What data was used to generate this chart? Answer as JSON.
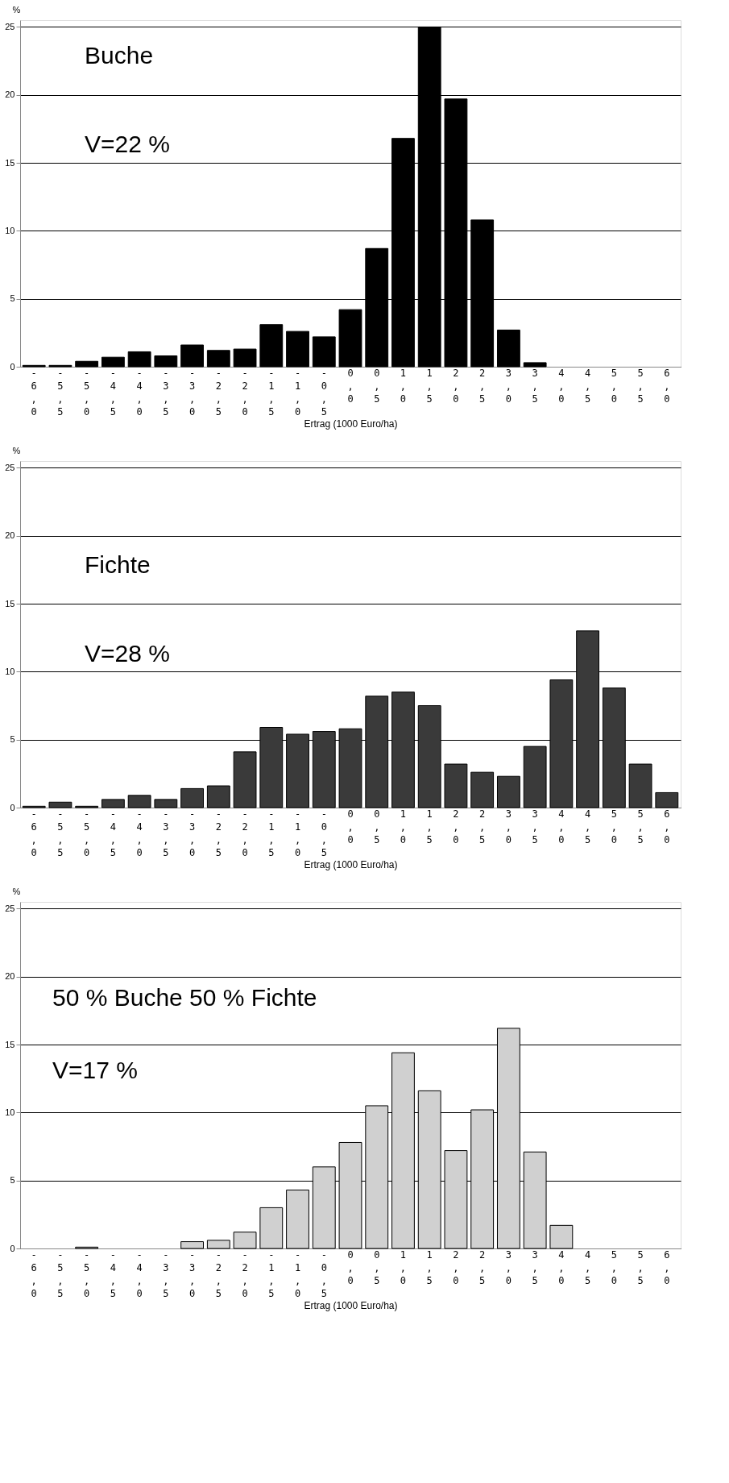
{
  "chart_data": [
    {
      "type": "bar",
      "title": null,
      "xlabel": "Ertrag (1000 Euro/ha)",
      "ylabel": "%",
      "categories": [
        "-6,0",
        "-5,5",
        "-5,0",
        "-4,5",
        "-4,0",
        "-3,5",
        "-3,0",
        "-2,5",
        "-2,0",
        "-1,5",
        "-1,0",
        "-0,5",
        "0,0",
        "0,5",
        "1,0",
        "1,5",
        "2,0",
        "2,5",
        "3,0",
        "3,5",
        "4,0",
        "4,5",
        "5,0",
        "5,5",
        "6,0"
      ],
      "values": [
        0.1,
        0.1,
        0.4,
        0.7,
        1.1,
        0.8,
        1.6,
        1.2,
        1.3,
        3.1,
        2.6,
        2.2,
        4.2,
        8.7,
        16.8,
        25,
        19.7,
        10.8,
        2.7,
        0.3,
        0,
        0,
        0,
        0,
        0
      ],
      "color": "#000000",
      "ylim": [
        0,
        25.5
      ],
      "yticks": [
        0,
        5,
        10,
        15,
        20,
        25
      ],
      "grid": "y",
      "annotations": [
        "Buche",
        "V=22 %"
      ]
    },
    {
      "type": "bar",
      "xlabel": "Ertrag (1000 Euro/ha)",
      "ylabel": "%",
      "categories": [
        "-6,0",
        "-5,5",
        "-5,0",
        "-4,5",
        "-4,0",
        "-3,5",
        "-3,0",
        "-2,5",
        "-2,0",
        "-1,5",
        "-1,0",
        "-0,5",
        "0,0",
        "0,5",
        "1,0",
        "1,5",
        "2,0",
        "2,5",
        "3,0",
        "3,5",
        "4,0",
        "4,5",
        "5,0",
        "5,5",
        "6,0"
      ],
      "values": [
        0.1,
        0.4,
        0.1,
        0.6,
        0.9,
        0.6,
        1.4,
        1.6,
        4.1,
        5.9,
        5.4,
        5.6,
        5.8,
        8.2,
        8.5,
        7.5,
        3.2,
        2.6,
        2.3,
        4.5,
        9.4,
        13.0,
        8.8,
        3.2,
        1.1
      ],
      "color": "#3a3a3a",
      "ylim": [
        0,
        25.5
      ],
      "yticks": [
        0,
        5,
        10,
        15,
        20,
        25
      ],
      "grid": "y",
      "annotations": [
        "Fichte",
        "V=28 %"
      ]
    },
    {
      "type": "bar",
      "xlabel": "Ertrag (1000 Euro/ha)",
      "ylabel": "%",
      "categories": [
        "-6,0",
        "-5,5",
        "-5,0",
        "-4,5",
        "-4,0",
        "-3,5",
        "-3,0",
        "-2,5",
        "-2,0",
        "-1,5",
        "-1,0",
        "-0,5",
        "0,0",
        "0,5",
        "1,0",
        "1,5",
        "2,0",
        "2,5",
        "3,0",
        "3,5",
        "4,0",
        "4,5",
        "5,0",
        "5,5",
        "6,0"
      ],
      "values": [
        0,
        0,
        0.1,
        0,
        0,
        0,
        0.5,
        0.6,
        1.2,
        3.0,
        4.3,
        6.0,
        7.8,
        10.5,
        14.4,
        11.6,
        7.2,
        10.2,
        16.2,
        7.1,
        1.7,
        0,
        0,
        0,
        0
      ],
      "color": "#d0d0d0",
      "ylim": [
        0,
        25.5
      ],
      "yticks": [
        0,
        5,
        10,
        15,
        20,
        25
      ],
      "grid": "y",
      "annotations": [
        "50 % Buche 50 % Fichte",
        "V=17 %"
      ]
    }
  ]
}
